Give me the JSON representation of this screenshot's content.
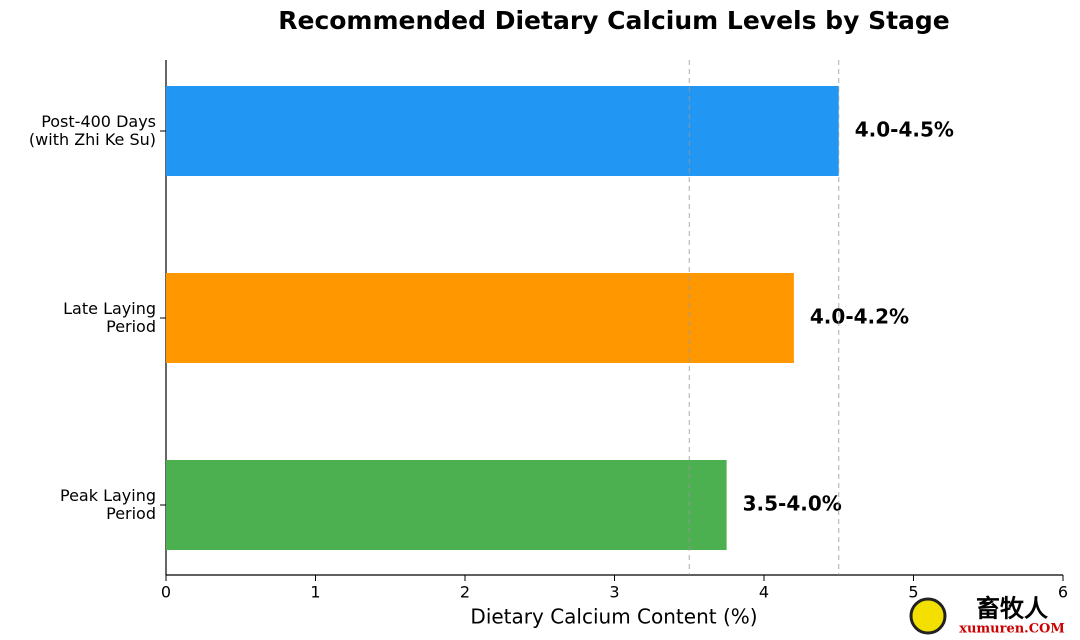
{
  "chart_data": {
    "type": "barh",
    "title": "Recommended Dietary Calcium Levels by Stage",
    "x_label": "Dietary Calcium Content (%)",
    "categories": [
      "Post-400 Days\n(with Zhi Ke Su)",
      "Late Laying\nPeriod",
      "Peak Laying\nPeriod"
    ],
    "series": [
      {
        "colors": [
          "#2196f3",
          "#ff9800",
          "#4caf50"
        ],
        "values": [
          4.5,
          4.2,
          3.75
        ],
        "value_labels": [
          "4.0-4.5%",
          "4.0-4.2%",
          "3.5-4.0%"
        ]
      }
    ],
    "xlim": [
      0,
      6
    ],
    "xticks": [
      0,
      1,
      2,
      3,
      4,
      5,
      6
    ],
    "reference_lines": [
      3.5,
      4.5
    ]
  },
  "watermark": {
    "text": "畜牧人",
    "site": "xumuren.COM"
  }
}
